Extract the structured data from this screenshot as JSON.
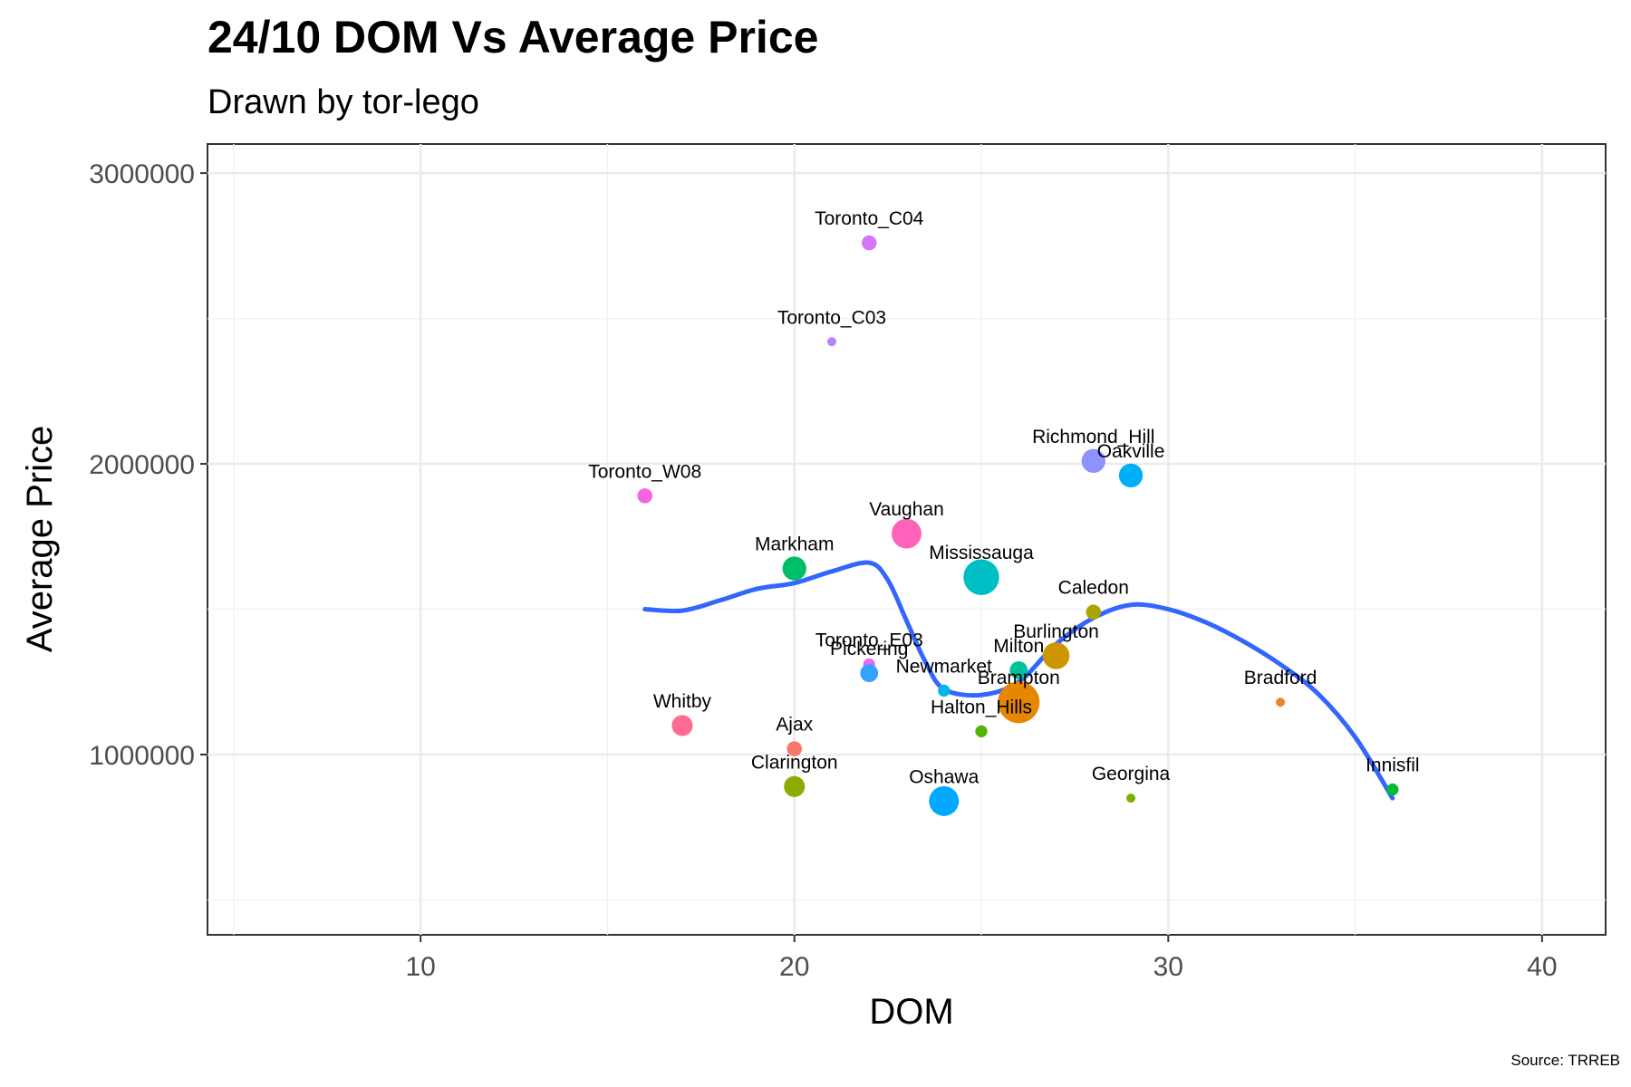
{
  "title": "24/10 DOM Vs Average Price",
  "subtitle": "Drawn by tor-lego",
  "caption": "Source: TRREB",
  "chart_data": {
    "type": "scatter",
    "title": "24/10 DOM Vs Average Price",
    "subtitle": "Drawn by tor-lego",
    "xlabel": "DOM",
    "ylabel": "Average Price",
    "xlim": [
      4.3,
      41.7
    ],
    "ylim": [
      380000,
      3100000
    ],
    "xticks": [
      10,
      20,
      30,
      40
    ],
    "yticks": [
      1000000,
      2000000,
      3000000
    ],
    "grid": true,
    "smooth_color": "#3366FF",
    "points": [
      {
        "label": "Toronto_C04",
        "x": 22,
        "y": 2760000,
        "size": 3,
        "color": "#D575FE"
      },
      {
        "label": "Toronto_C03",
        "x": 21,
        "y": 2420000,
        "size": 1,
        "color": "#B983FF"
      },
      {
        "label": "Toronto_W08",
        "x": 16,
        "y": 1890000,
        "size": 3,
        "color": "#F763E0"
      },
      {
        "label": "Richmond_Hill",
        "x": 28,
        "y": 2010000,
        "size": 6,
        "color": "#8F91FF"
      },
      {
        "label": "Oakville",
        "x": 29,
        "y": 1960000,
        "size": 6,
        "color": "#00B0F6"
      },
      {
        "label": "Vaughan",
        "x": 23,
        "y": 1760000,
        "size": 8,
        "color": "#FF62BC"
      },
      {
        "label": "Markham",
        "x": 20,
        "y": 1640000,
        "size": 6,
        "color": "#00BE67"
      },
      {
        "label": "Mississauga",
        "x": 25,
        "y": 1610000,
        "size": 10,
        "color": "#00BFC4"
      },
      {
        "label": "Caledon",
        "x": 28,
        "y": 1490000,
        "size": 3,
        "color": "#ABA300"
      },
      {
        "label": "Burlington",
        "x": 27,
        "y": 1340000,
        "size": 7,
        "color": "#CD9600"
      },
      {
        "label": "Milton",
        "x": 26,
        "y": 1290000,
        "size": 4,
        "color": "#00C19A"
      },
      {
        "label": "Toronto_E03",
        "x": 22,
        "y": 1310000,
        "size": 2,
        "color": "#E76BF3"
      },
      {
        "label": "Pickering",
        "x": 22,
        "y": 1280000,
        "size": 4,
        "color": "#35A2FF"
      },
      {
        "label": "Newmarket",
        "x": 24,
        "y": 1220000,
        "size": 2,
        "color": "#00B8E7"
      },
      {
        "label": "Brampton",
        "x": 26,
        "y": 1180000,
        "size": 12,
        "color": "#E58700"
      },
      {
        "label": "Halton_Hills",
        "x": 25,
        "y": 1080000,
        "size": 2,
        "color": "#53B400"
      },
      {
        "label": "Bradford",
        "x": 33,
        "y": 1180000,
        "size": 1,
        "color": "#E9842C"
      },
      {
        "label": "Whitby",
        "x": 17,
        "y": 1100000,
        "size": 5,
        "color": "#FF6C91"
      },
      {
        "label": "Ajax",
        "x": 20,
        "y": 1020000,
        "size": 3,
        "color": "#F8766D"
      },
      {
        "label": "Clarington",
        "x": 20,
        "y": 890000,
        "size": 5,
        "color": "#8CAB00"
      },
      {
        "label": "Oshawa",
        "x": 24,
        "y": 840000,
        "size": 8,
        "color": "#00A9FF"
      },
      {
        "label": "Georgina",
        "x": 29,
        "y": 850000,
        "size": 1,
        "color": "#7CAE00"
      },
      {
        "label": "Innisfil",
        "x": 36,
        "y": 880000,
        "size": 2,
        "color": "#00BA38"
      }
    ],
    "smooth": [
      [
        16,
        1500000
      ],
      [
        17,
        1495000
      ],
      [
        18,
        1530000
      ],
      [
        19,
        1570000
      ],
      [
        20,
        1590000
      ],
      [
        21,
        1630000
      ],
      [
        22,
        1660000
      ],
      [
        22.5,
        1600000
      ],
      [
        23,
        1460000
      ],
      [
        23.5,
        1320000
      ],
      [
        24,
        1225000
      ],
      [
        25,
        1205000
      ],
      [
        26,
        1250000
      ],
      [
        27,
        1380000
      ],
      [
        28,
        1470000
      ],
      [
        29,
        1515000
      ],
      [
        30,
        1500000
      ],
      [
        31,
        1455000
      ],
      [
        32,
        1390000
      ],
      [
        33,
        1310000
      ],
      [
        34,
        1210000
      ],
      [
        35,
        1060000
      ],
      [
        36,
        850000
      ]
    ]
  }
}
